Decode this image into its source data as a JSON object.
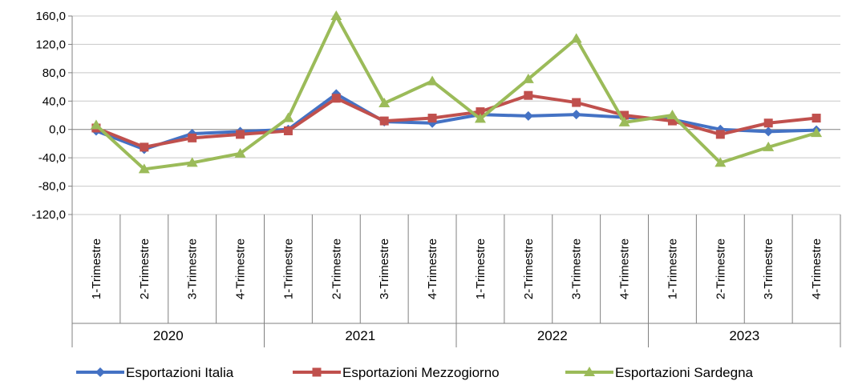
{
  "chart_data": {
    "type": "line",
    "title": "",
    "xlabel": "",
    "ylabel": "",
    "ylim": [
      -120,
      160
    ],
    "yticks": [
      160,
      120,
      80,
      40,
      0,
      -40,
      -80,
      -120
    ],
    "ytick_labels": [
      "160,0",
      "120,0",
      "80,0",
      "40,0",
      "0,0",
      "-40,0",
      "-80,0",
      "-120,0"
    ],
    "grid": "horizontal",
    "legend_position": "bottom",
    "groups": [
      "2020",
      "2021",
      "2022",
      "2023"
    ],
    "categories": [
      "1-Trimestre",
      "2-Trimestre",
      "3-Trimestre",
      "4-Trimestre",
      "1-Trimestre",
      "2-Trimestre",
      "3-Trimestre",
      "4-Trimestre",
      "1-Trimestre",
      "2-Trimestre",
      "3-Trimestre",
      "4-Trimestre",
      "1-Trimestre",
      "2-Trimestre",
      "3-Trimestre",
      "4-Trimestre"
    ],
    "series": [
      {
        "name": "Esportazioni Italia",
        "color": "#4472c4",
        "marker": "diamond",
        "values": [
          -2,
          -28,
          -6,
          -3,
          0,
          50,
          11,
          9,
          21,
          19,
          21,
          17,
          14,
          0,
          -3,
          -1
        ]
      },
      {
        "name": "Esportazioni Mezzogiorno",
        "color": "#c0504d",
        "marker": "square",
        "values": [
          2,
          -25,
          -12,
          -7,
          -2,
          44,
          12,
          16,
          25,
          48,
          38,
          20,
          12,
          -7,
          9,
          16
        ]
      },
      {
        "name": "Esportazioni Sardegna",
        "color": "#9bbb59",
        "marker": "triangle",
        "values": [
          6,
          -56,
          -47,
          -34,
          16,
          160,
          37,
          68,
          15,
          71,
          128,
          10,
          20,
          -47,
          -25,
          -5
        ]
      }
    ]
  }
}
